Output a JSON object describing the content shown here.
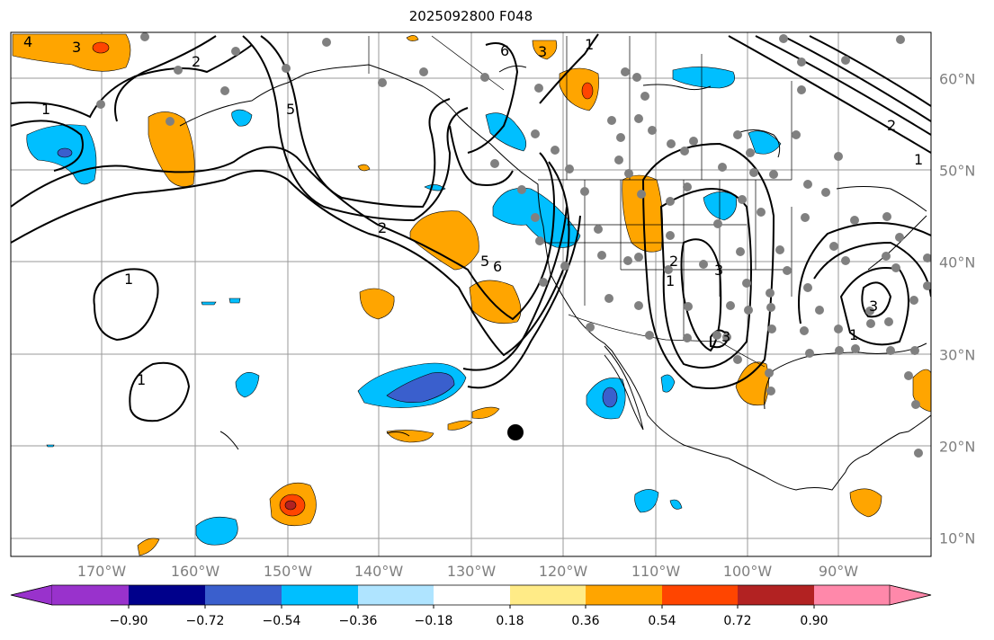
{
  "title": "2025092800 F048",
  "map": {
    "lon_labels": [
      "170°W",
      "160°W",
      "150°W",
      "140°W",
      "130°W",
      "120°W",
      "110°W",
      "100°W",
      "90°W"
    ],
    "lat_labels": [
      "60°N",
      "50°N",
      "40°N",
      "30°N",
      "20°N",
      "10°N"
    ],
    "contour_labels": [
      "1",
      "1",
      "1",
      "1",
      "1",
      "1",
      "1",
      "2",
      "2",
      "2",
      "2",
      "3",
      "3",
      "3",
      "3",
      "3",
      "4",
      "5",
      "5",
      "6",
      "6"
    ]
  },
  "colorbar": {
    "tick_labels": [
      "−0.90",
      "−0.72",
      "−0.54",
      "−0.36",
      "−0.18",
      "0.18",
      "0.36",
      "0.54",
      "0.72",
      "0.90"
    ],
    "colors": [
      "#9932cc",
      "#00008b",
      "#3a5fcd",
      "#00bfff",
      "#afe4ff",
      "#ffffff",
      "#ffeb87",
      "#ffa500",
      "#ff4500",
      "#b22222",
      "#ff88aa"
    ]
  },
  "colors": {
    "grid": "#9a9a9a",
    "station_dot": "#808080",
    "contour": "#000000",
    "label_text": "#7f7f7f"
  }
}
